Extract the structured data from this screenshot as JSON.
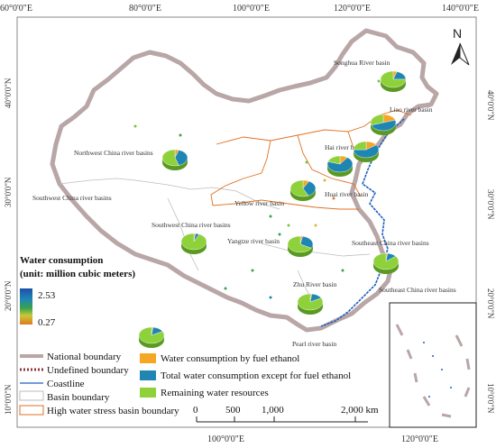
{
  "graticule": {
    "top": [
      "60°0'0\"E",
      "80°0'0\"E",
      "100°0'0\"E",
      "120°0'0\"E",
      "140°0'0\"E"
    ],
    "bottom": [
      "100°0'0\"E",
      "120°0'0\"E"
    ],
    "left": [
      "40°0'0\"N",
      "30°0'0\"N",
      "20°0'0\"N",
      "10°0'0\"N"
    ],
    "right": [
      "40°0'0\"N",
      "30°0'0\"N",
      "20°0'0\"N",
      "10°0'0\"N"
    ]
  },
  "north_label": "N",
  "basins": [
    "Songhua River basin",
    "Liao river basin",
    "Hai river basin",
    "Northwest China river basins",
    "Huai river basin",
    "Yellow river basin",
    "Southwest China river basins",
    "Southwest China river basins",
    "Yangtze river basin",
    "Southeast China river basins",
    "Southeast China river basins",
    "Zhu River basin",
    "Pearl river basin"
  ],
  "colorbar": {
    "title_line1": "Water consumption",
    "title_line2": "(unit: million cubic meters)",
    "max": "2.53",
    "min": "0.27"
  },
  "legend": {
    "national": "National boundary",
    "undefined": "Undefined boundary",
    "coastline": "Coastline",
    "basin": "Basin boundary",
    "high_stress": "High water stress basin boundary"
  },
  "pie_legend": {
    "fuel": "Water consumption by fuel ethanol",
    "other": "Total water consumption except for fuel ethanol",
    "remaining": "Remaining water resources"
  },
  "scale": {
    "ticks": [
      "0",
      "500",
      "1,000",
      "2,000 km"
    ]
  },
  "colors": {
    "national_boundary": "#b9a6a6",
    "basin_boundary": "#bdbdbd",
    "high_stress": "#e07020",
    "coastline": "#1f5fbf",
    "fuel": "#f5a623",
    "other": "#1f86b4",
    "remaining": "#8ed13a"
  },
  "pies": [
    {
      "basin": "Songhua River basin",
      "fuel": 0.05,
      "other": 0.2,
      "remaining": 0.75
    },
    {
      "basin": "Liao river basin",
      "fuel": 0.2,
      "other": 0.5,
      "remaining": 0.3
    },
    {
      "basin": "Hai river basin",
      "fuel": 0.15,
      "other": 0.6,
      "remaining": 0.25
    },
    {
      "basin": "Northwest China river basins",
      "fuel": 0.05,
      "other": 0.4,
      "remaining": 0.55
    },
    {
      "basin": "Huai river basin",
      "fuel": 0.1,
      "other": 0.7,
      "remaining": 0.2
    },
    {
      "basin": "Yellow river basin",
      "fuel": 0.08,
      "other": 0.35,
      "remaining": 0.57
    },
    {
      "basin": "Southwest China river basins",
      "fuel": 0.02,
      "other": 0.05,
      "remaining": 0.93
    },
    {
      "basin": "Yangtze river basin",
      "fuel": 0.03,
      "other": 0.3,
      "remaining": 0.67
    },
    {
      "basin": "Southeast China river basins",
      "fuel": 0.02,
      "other": 0.12,
      "remaining": 0.86
    },
    {
      "basin": "Zhu River basin",
      "fuel": 0.02,
      "other": 0.15,
      "remaining": 0.83
    }
  ]
}
